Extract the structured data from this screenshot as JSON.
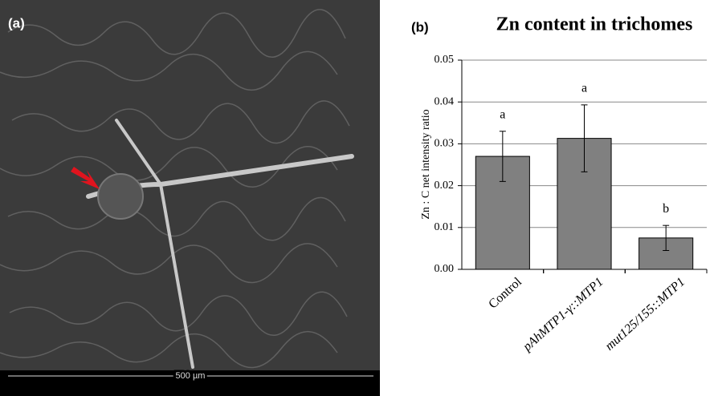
{
  "panel_a": {
    "label": "(a)",
    "scale_bar": "500 µm"
  },
  "chart_data": {
    "type": "bar",
    "panel_label": "(b)",
    "title": "Zn content in trichomes",
    "y_label": "Zn : C net intensity ratio",
    "categories": [
      "Control",
      "pAhMTP1-γ::MTP1",
      "mut125/155::MTP1"
    ],
    "values": [
      0.027,
      0.0313,
      0.0075
    ],
    "errors": [
      0.006,
      0.008,
      0.003
    ],
    "annotations": [
      "a",
      "a",
      "b"
    ],
    "color": "#808080",
    "ylim": [
      0,
      0.05
    ],
    "yticks": [
      {
        "value": 0,
        "label": "0.00"
      },
      0.01,
      0.02,
      0.03,
      0.04,
      0.05
    ],
    "grid": true
  }
}
